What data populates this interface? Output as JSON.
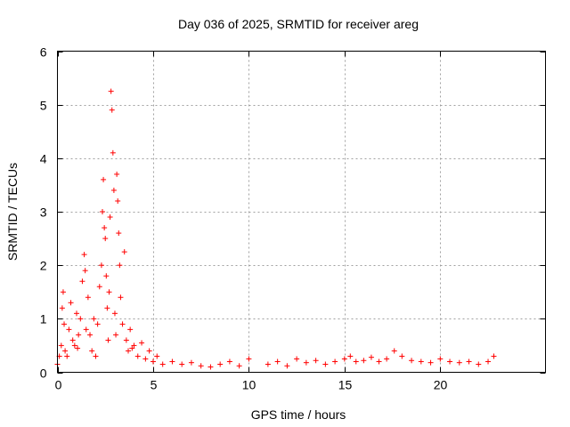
{
  "chart_data": {
    "type": "scatter",
    "title": "Day 036 of 2025, SRMTID for receiver areg",
    "xlabel": "GPS time / hours",
    "ylabel": "SRMTID / TECUs",
    "xlim": [
      0,
      25.5
    ],
    "ylim": [
      0,
      6
    ],
    "xticks": [
      0,
      5,
      10,
      15,
      20
    ],
    "yticks": [
      0,
      1,
      2,
      3,
      4,
      5,
      6
    ],
    "xtick_labels": [
      "0",
      "5",
      "10",
      "15",
      "20"
    ],
    "ytick_labels": [
      "0",
      "1",
      "2",
      "3",
      "4",
      "5",
      "6"
    ],
    "grid": true,
    "marker": "plus",
    "color": "#ff0000",
    "series": [
      {
        "name": "SRMTID",
        "x": [
          0.0,
          0.1,
          0.2,
          0.25,
          0.3,
          0.35,
          0.4,
          0.5,
          0.6,
          0.7,
          0.8,
          0.9,
          1.0,
          1.05,
          1.1,
          1.2,
          1.3,
          1.4,
          1.45,
          1.5,
          1.6,
          1.7,
          1.8,
          1.9,
          2.0,
          2.1,
          2.2,
          2.3,
          2.35,
          2.4,
          2.45,
          2.5,
          2.55,
          2.6,
          2.65,
          2.7,
          2.75,
          2.8,
          2.85,
          2.9,
          2.95,
          3.0,
          3.05,
          3.1,
          3.15,
          3.2,
          3.25,
          3.3,
          3.4,
          3.5,
          3.6,
          3.7,
          3.8,
          3.9,
          4.0,
          4.2,
          4.4,
          4.6,
          4.8,
          5.0,
          5.2,
          5.5,
          6.0,
          6.5,
          7.0,
          7.5,
          8.0,
          8.5,
          9.0,
          9.5,
          10.0,
          11.0,
          11.5,
          12.0,
          12.5,
          13.0,
          13.5,
          14.0,
          14.5,
          15.0,
          15.3,
          15.6,
          16.0,
          16.4,
          16.8,
          17.2,
          17.6,
          18.0,
          18.5,
          19.0,
          19.5,
          20.0,
          20.5,
          21.0,
          21.5,
          22.0,
          22.5,
          22.8
        ],
        "y": [
          0.15,
          0.3,
          0.5,
          1.2,
          1.5,
          0.9,
          0.4,
          0.3,
          0.8,
          1.3,
          0.6,
          0.5,
          1.1,
          0.45,
          0.7,
          1.0,
          1.7,
          2.2,
          1.9,
          0.8,
          1.4,
          0.7,
          0.4,
          1.0,
          0.3,
          0.9,
          1.6,
          2.0,
          3.0,
          3.6,
          2.7,
          2.5,
          1.8,
          1.2,
          0.6,
          1.5,
          2.9,
          5.25,
          4.9,
          4.1,
          3.4,
          1.1,
          0.7,
          3.7,
          3.2,
          2.6,
          2.0,
          1.4,
          0.9,
          2.25,
          0.6,
          0.4,
          0.8,
          0.45,
          0.5,
          0.3,
          0.55,
          0.25,
          0.4,
          0.2,
          0.3,
          0.15,
          0.2,
          0.15,
          0.18,
          0.12,
          0.1,
          0.15,
          0.2,
          0.12,
          0.25,
          0.15,
          0.2,
          0.12,
          0.25,
          0.18,
          0.22,
          0.15,
          0.2,
          0.25,
          0.3,
          0.2,
          0.22,
          0.28,
          0.2,
          0.25,
          0.4,
          0.3,
          0.22,
          0.2,
          0.18,
          0.25,
          0.2,
          0.18,
          0.2,
          0.15,
          0.2,
          0.3
        ]
      }
    ]
  }
}
